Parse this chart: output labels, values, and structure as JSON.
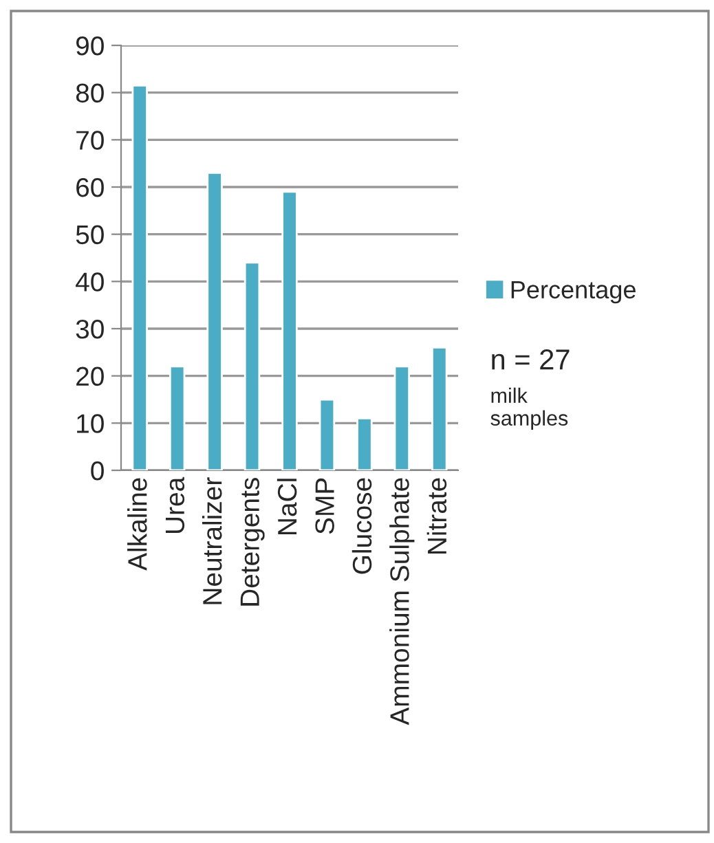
{
  "chart_data": {
    "type": "bar",
    "categories": [
      "Alkaline",
      "Urea",
      "Neutralizer",
      "Detergents",
      "NaCl",
      "SMP",
      "Glucose",
      "Ammonium Sulphate",
      "Nitrate"
    ],
    "series": [
      {
        "name": "Percentage",
        "color": "#4bacc6",
        "values": [
          81.5,
          22,
          63,
          44,
          59,
          15,
          11,
          22,
          26
        ]
      }
    ],
    "ylim": [
      0,
      90
    ],
    "yticks": [
      0,
      10,
      20,
      30,
      40,
      50,
      60,
      70,
      80,
      90
    ],
    "grid": "y",
    "legend": "right",
    "annotations": [
      "n = 27",
      "milk\nsamples"
    ]
  }
}
